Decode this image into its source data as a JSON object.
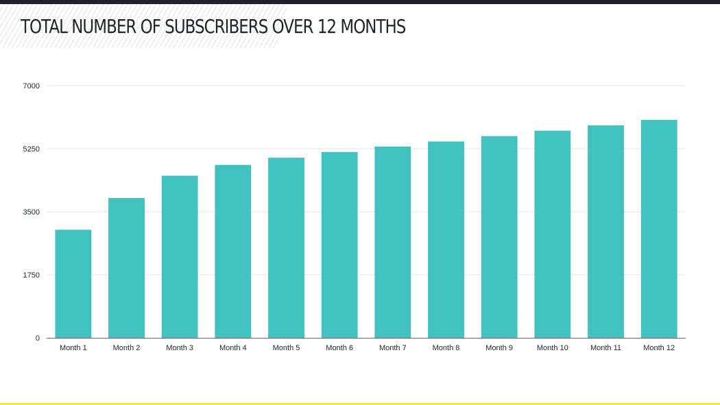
{
  "colors": {
    "bar": "#41c1c0",
    "grid": "#e5e5e5",
    "axis": "#666666",
    "text": "#1f2329",
    "accent": "#f3e93a"
  },
  "chart_data": {
    "type": "bar",
    "title": "TOTAL NUMBER OF SUBSCRIBERS OVER 12 MONTHS",
    "xlabel": "",
    "ylabel": "",
    "categories": [
      "Month 1",
      "Month 2",
      "Month 3",
      "Month 4",
      "Month 5",
      "Month 6",
      "Month 7",
      "Month 8",
      "Month 9",
      "Month 10",
      "Month 11",
      "Month 12"
    ],
    "values": [
      3000,
      3880,
      4500,
      4800,
      5000,
      5160,
      5310,
      5450,
      5600,
      5750,
      5900,
      6050
    ],
    "ylim": [
      0,
      7000
    ],
    "yticks": [
      0,
      1750,
      3500,
      5250,
      7000
    ],
    "ytick_labels": [
      "0",
      "1750",
      "3500",
      "5250",
      "7000"
    ],
    "grid": true,
    "legend": "none"
  }
}
